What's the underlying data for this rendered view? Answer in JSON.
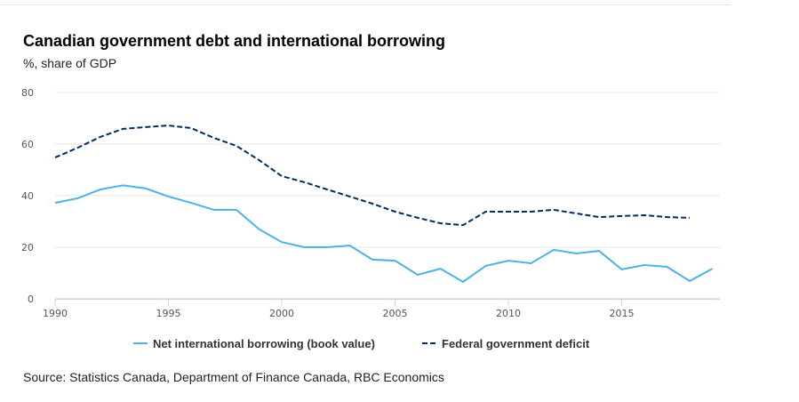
{
  "chart_data": {
    "type": "line",
    "title": "Canadian government debt and international borrowing",
    "subtitle": "%, share of GDP",
    "source": "Source: Statistics Canada, Department of Finance Canada, RBC Economics",
    "ylim": [
      0,
      80
    ],
    "yticks": [
      "0",
      "20",
      "40",
      "60",
      "80"
    ],
    "xlim": [
      1990,
      2019
    ],
    "xticks": [
      "1990",
      "1995",
      "2000",
      "2005",
      "2010",
      "2015"
    ],
    "grid": true,
    "legend_position": "bottom",
    "series": [
      {
        "name": "Net international borrowing (book value)",
        "color": "#4bb3e6",
        "style": "solid",
        "x": [
          1990,
          1991,
          1992,
          1993,
          1994,
          1995,
          1996,
          1997,
          1998,
          1999,
          2000,
          2001,
          2002,
          2003,
          2004,
          2005,
          2006,
          2007,
          2008,
          2009,
          2010,
          2011,
          2012,
          2013,
          2014,
          2015,
          2016,
          2017,
          2018,
          2019
        ],
        "values": [
          37.2,
          39,
          42.4,
          44,
          42.8,
          39.7,
          37.2,
          34.5,
          34.5,
          27,
          22,
          20,
          20,
          20.7,
          15.2,
          14.8,
          9.3,
          11.7,
          6.6,
          12.8,
          14.8,
          13.8,
          19,
          17.6,
          18.6,
          11.4,
          13.1,
          12.4,
          6.9,
          11.7
        ]
      },
      {
        "name": "Federal government deficit",
        "color": "#002d62",
        "style": "dashed",
        "x": [
          1990,
          1991,
          1992,
          1993,
          1994,
          1995,
          1996,
          1997,
          1998,
          1999,
          2000,
          2001,
          2002,
          2003,
          2004,
          2005,
          2006,
          2007,
          2008,
          2009,
          2010,
          2011,
          2012,
          2013,
          2014,
          2015,
          2016,
          2017,
          2018
        ],
        "values": [
          54.8,
          58.6,
          62.8,
          65.9,
          66.6,
          67.2,
          66.2,
          62.4,
          59.3,
          53.8,
          47.6,
          45.2,
          42.4,
          39.7,
          36.9,
          33.8,
          31.4,
          29.3,
          28.6,
          33.8,
          33.8,
          33.8,
          34.5,
          33.1,
          31.7,
          32.1,
          32.4,
          31.7,
          31.4
        ]
      }
    ]
  }
}
